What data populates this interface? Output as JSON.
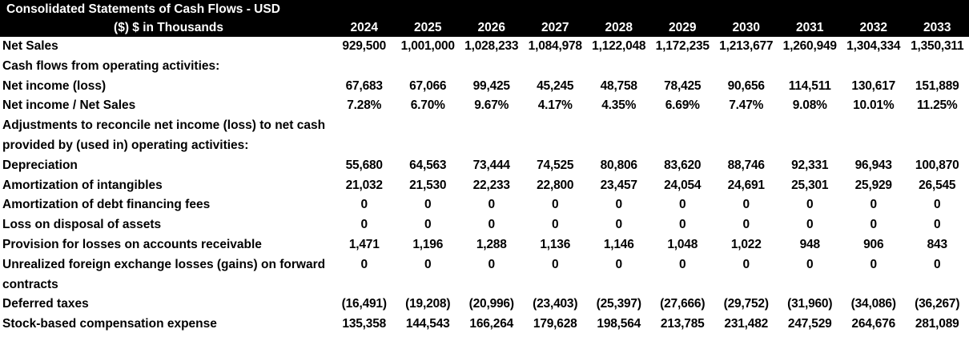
{
  "header": {
    "title": [
      "Consolidated Statements of Cash Flows - USD",
      "($) $ in Thousands"
    ],
    "years": [
      "2024",
      "2025",
      "2026",
      "2027",
      "2028",
      "2029",
      "2030",
      "2031",
      "2032",
      "2033"
    ]
  },
  "table": {
    "rows": [
      {
        "label": "Net Sales",
        "values": [
          "929,500",
          "1,001,000",
          "1,028,233",
          "1,084,978",
          "1,122,048",
          "1,172,235",
          "1,213,677",
          "1,260,949",
          "1,304,334",
          "1,350,311"
        ]
      },
      {
        "label": "Cash flows from operating activities:"
      },
      {
        "label": "Net income (loss)",
        "values": [
          "67,683",
          "67,066",
          "99,425",
          "45,245",
          "48,758",
          "78,425",
          "90,656",
          "114,511",
          "130,617",
          "151,889"
        ]
      },
      {
        "label": "Net income / Net Sales",
        "values": [
          "7.28%",
          "6.70%",
          "9.67%",
          "4.17%",
          "4.35%",
          "6.69%",
          "7.47%",
          "9.08%",
          "10.01%",
          "11.25%"
        ]
      },
      {
        "label": "Adjustments to reconcile net income (loss) to net cash provided by (used in) operating activities:"
      },
      {
        "label": "Depreciation",
        "values": [
          "55,680",
          "64,563",
          "73,444",
          "74,525",
          "80,806",
          "83,620",
          "88,746",
          "92,331",
          "96,943",
          "100,870"
        ]
      },
      {
        "label": "Amortization of intangibles",
        "values": [
          "21,032",
          "21,530",
          "22,233",
          "22,800",
          "23,457",
          "24,054",
          "24,691",
          "25,301",
          "25,929",
          "26,545"
        ]
      },
      {
        "label": "Amortization of debt financing fees",
        "values": [
          "0",
          "0",
          "0",
          "0",
          "0",
          "0",
          "0",
          "0",
          "0",
          "0"
        ]
      },
      {
        "label": "Loss on disposal of assets",
        "values": [
          "0",
          "0",
          "0",
          "0",
          "0",
          "0",
          "0",
          "0",
          "0",
          "0"
        ]
      },
      {
        "label": "Provision for losses on accounts receivable",
        "values": [
          "1,471",
          "1,196",
          "1,288",
          "1,136",
          "1,146",
          "1,048",
          "1,022",
          "948",
          "906",
          "843"
        ]
      },
      {
        "label": "Unrealized foreign exchange losses (gains) on forward contracts",
        "values": [
          "0",
          "0",
          "0",
          "0",
          "0",
          "0",
          "0",
          "0",
          "0",
          "0"
        ]
      },
      {
        "label": "Deferred taxes",
        "values": [
          "(16,491)",
          "(19,208)",
          "(20,996)",
          "(23,403)",
          "(25,397)",
          "(27,666)",
          "(29,752)",
          "(31,960)",
          "(34,086)",
          "(36,267)"
        ]
      },
      {
        "label": "Stock-based compensation expense",
        "values": [
          "135,358",
          "144,543",
          "166,264",
          "179,628",
          "198,564",
          "213,785",
          "231,482",
          "247,529",
          "264,676",
          "281,089"
        ]
      }
    ]
  }
}
